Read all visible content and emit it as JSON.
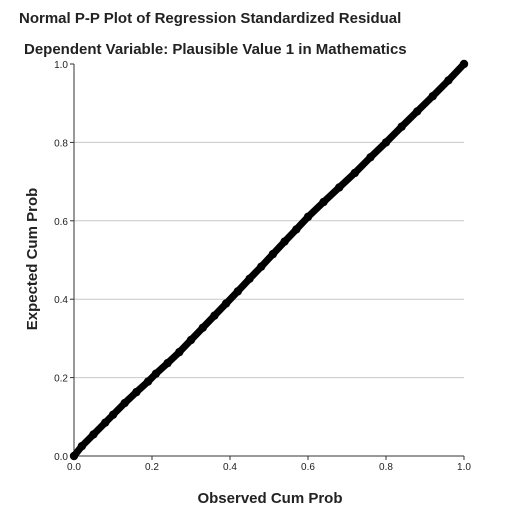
{
  "chart_data": {
    "type": "scatter",
    "title": "Normal P-P Plot of Regression Standardized Residual",
    "subtitle": "Dependent Variable: Plausible Value 1 in Mathematics",
    "xlabel": "Observed Cum Prob",
    "ylabel": "Expected Cum Prob",
    "xlim": [
      0.0,
      1.0
    ],
    "ylim": [
      0.0,
      1.0
    ],
    "xticks": [
      "0.0",
      "0.2",
      "0.4",
      "0.6",
      "0.8",
      "1.0"
    ],
    "yticks": [
      "0.0",
      "0.2",
      "0.4",
      "0.6",
      "0.8",
      "1.0"
    ],
    "grid": "horizontal",
    "reference_line": {
      "from": [
        0.0,
        0.0
      ],
      "to": [
        1.0,
        1.0
      ]
    },
    "series": [
      {
        "x": [
          0.0,
          0.02,
          0.05,
          0.08,
          0.1,
          0.13,
          0.16,
          0.19,
          0.21,
          0.24,
          0.27,
          0.3,
          0.33,
          0.36,
          0.39,
          0.42,
          0.45,
          0.48,
          0.51,
          0.54,
          0.57,
          0.6,
          0.64,
          0.68,
          0.72,
          0.76,
          0.8,
          0.84,
          0.88,
          0.92,
          0.96,
          1.0
        ],
        "y": [
          0.0,
          0.025,
          0.055,
          0.085,
          0.105,
          0.135,
          0.163,
          0.19,
          0.21,
          0.237,
          0.265,
          0.296,
          0.327,
          0.358,
          0.389,
          0.42,
          0.452,
          0.483,
          0.515,
          0.547,
          0.578,
          0.61,
          0.648,
          0.685,
          0.722,
          0.762,
          0.8,
          0.84,
          0.879,
          0.918,
          0.958,
          1.0
        ],
        "color": "#000000"
      }
    ]
  }
}
